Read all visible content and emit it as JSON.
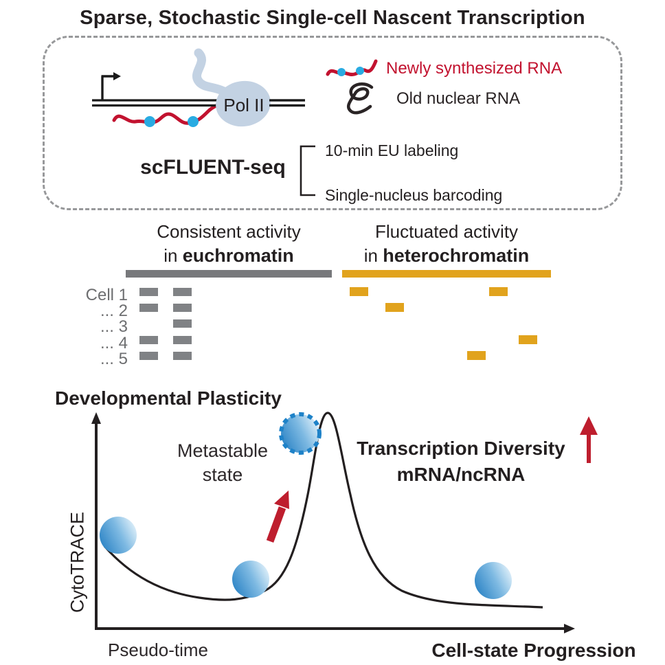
{
  "title": "Sparse, Stochastic Single-cell Nascent Transcription",
  "method_box": {
    "pol2_label": "Pol II",
    "legend": [
      {
        "icon": "new-rna-squiggle-icon",
        "label": "Newly synthesized RNA",
        "color": "#c2122f"
      },
      {
        "icon": "old-rna-squiggle-icon",
        "label": "Old nuclear RNA",
        "color": "#2a2425"
      }
    ],
    "method_name": "scFLUENT-seq",
    "steps": [
      "10-min EU labeling",
      "Single-nucleus barcoding"
    ]
  },
  "activity": {
    "left_header": {
      "line1": "Consistent activity",
      "line2_prefix": "in ",
      "line2_bold": "euchromatin",
      "bar_color": "#77787b"
    },
    "right_header": {
      "line1": "Fluctuated activity",
      "line2_prefix": "in ",
      "line2_bold": "heterochromatin",
      "bar_color": "#e1a31d"
    },
    "rows": [
      {
        "label": "Cell 1",
        "eu": [
          203,
          252
        ],
        "het": [
          509,
          712
        ]
      },
      {
        "label": "... 2",
        "eu": [
          203,
          252
        ],
        "het": [
          561
        ]
      },
      {
        "label": "... 3",
        "eu": [
          252
        ],
        "het": []
      },
      {
        "label": "... 4",
        "eu": [
          203,
          252
        ],
        "het": [
          755
        ]
      },
      {
        "label": "... 5",
        "eu": [
          203,
          252
        ],
        "het": [
          680
        ]
      }
    ]
  },
  "plot": {
    "heading": "Developmental Plasticity",
    "ylabel": "CytoTRACE",
    "xlabel_left": "Pseudo-time",
    "xlabel_right": "Cell-state Progression",
    "metastable_line1": "Metastable",
    "metastable_line2": "state",
    "annotation_line1": "Transcription Diversity",
    "annotation_line2": "mRNA/ncRNA"
  },
  "colors": {
    "text_dark": "#231f20",
    "red_accent": "#be1e2e",
    "red_rna": "#c2122f",
    "blue_dot": "#29abe2",
    "pol2_blob": "#c3d2e3",
    "metastable_border": "#1e82c8",
    "cell_gradient_dark": "#2b83c5",
    "cell_gradient_light": "#e2f1fa",
    "euchromatin_gray": "#77787b",
    "heterochromatin_orange": "#e1a31d",
    "dashed_box_gray": "#97989a"
  },
  "chart_data": {
    "type": "line",
    "title": "Developmental Plasticity",
    "xlabel": "Pseudo-time / Cell-state Progression",
    "ylabel": "CytoTRACE",
    "axis_ranges": {
      "x": [
        0,
        1
      ],
      "y": [
        0,
        1
      ]
    },
    "grid": false,
    "curve_points_normalized": [
      [
        0.02,
        0.38
      ],
      [
        0.16,
        0.16
      ],
      [
        0.29,
        0.14
      ],
      [
        0.41,
        0.3
      ],
      [
        0.46,
        0.71
      ],
      [
        0.49,
        1.0
      ],
      [
        0.53,
        0.67
      ],
      [
        0.58,
        0.3
      ],
      [
        0.7,
        0.16
      ],
      [
        0.84,
        0.12
      ],
      [
        0.94,
        0.1
      ]
    ],
    "cell_markers_normalized": [
      {
        "x": 0.05,
        "y": 0.43,
        "style": "solid-gradient-cell"
      },
      {
        "x": 0.33,
        "y": 0.23,
        "style": "solid-gradient-cell"
      },
      {
        "x": 0.43,
        "y": 0.9,
        "style": "dashed-metastable-cell",
        "label": "Metastable state"
      },
      {
        "x": 0.84,
        "y": 0.22,
        "style": "solid-gradient-cell"
      }
    ],
    "annotations": [
      "Transcription Diversity mRNA/ncRNA (up arrow)"
    ]
  }
}
